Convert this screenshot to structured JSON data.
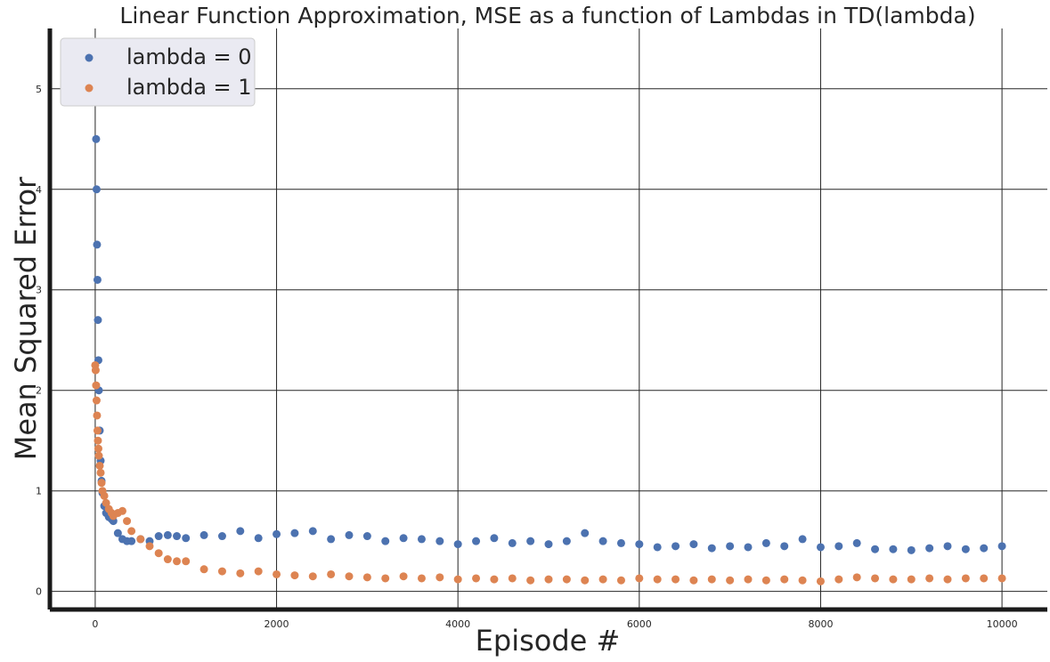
{
  "chart_data": {
    "type": "scatter",
    "title": "Linear Function Approximation, MSE as a function of Lambdas in TD(lambda)",
    "xlabel": "Episode #",
    "ylabel": "Mean Squared Error",
    "xlim": [
      -500,
      10500
    ],
    "ylim": [
      -0.18,
      5.6
    ],
    "xticks": [
      0,
      2000,
      4000,
      6000,
      8000,
      10000
    ],
    "yticks": [
      0,
      1,
      2,
      3,
      4,
      5
    ],
    "grid": true,
    "legend_position": "upper-left",
    "series": [
      {
        "name": "lambda = 0",
        "color": "#4c72b0",
        "x": [
          0,
          5,
          10,
          15,
          20,
          25,
          30,
          35,
          40,
          50,
          60,
          70,
          80,
          100,
          120,
          150,
          180,
          200,
          250,
          300,
          350,
          400,
          500,
          600,
          700,
          800,
          900,
          1000,
          1200,
          1400,
          1600,
          1800,
          2000,
          2200,
          2400,
          2600,
          2800,
          3000,
          3200,
          3400,
          3600,
          3800,
          4000,
          4200,
          4400,
          4600,
          4800,
          5000,
          5200,
          5400,
          5600,
          5800,
          6000,
          6200,
          6400,
          6600,
          6800,
          7000,
          7200,
          7400,
          7600,
          7800,
          8000,
          8200,
          8400,
          8600,
          8800,
          9000,
          9200,
          9400,
          9600,
          9800,
          10000
        ],
        "y": [
          5.35,
          5.05,
          4.5,
          4.0,
          3.45,
          3.1,
          2.7,
          2.3,
          2.0,
          1.6,
          1.3,
          1.1,
          0.98,
          0.85,
          0.78,
          0.74,
          0.72,
          0.7,
          0.58,
          0.52,
          0.5,
          0.5,
          0.52,
          0.5,
          0.55,
          0.56,
          0.55,
          0.53,
          0.56,
          0.55,
          0.6,
          0.53,
          0.57,
          0.58,
          0.6,
          0.52,
          0.56,
          0.55,
          0.5,
          0.53,
          0.52,
          0.5,
          0.47,
          0.5,
          0.53,
          0.48,
          0.5,
          0.47,
          0.5,
          0.58,
          0.5,
          0.48,
          0.47,
          0.44,
          0.45,
          0.47,
          0.43,
          0.45,
          0.44,
          0.48,
          0.45,
          0.52,
          0.44,
          0.45,
          0.48,
          0.42,
          0.42,
          0.41,
          0.43,
          0.45,
          0.42,
          0.43,
          0.45
        ]
      },
      {
        "name": "lambda = 1",
        "color": "#dd8452",
        "x": [
          0,
          5,
          10,
          15,
          20,
          25,
          30,
          35,
          40,
          50,
          60,
          70,
          80,
          100,
          120,
          150,
          180,
          200,
          250,
          300,
          350,
          400,
          500,
          600,
          700,
          800,
          900,
          1000,
          1200,
          1400,
          1600,
          1800,
          2000,
          2200,
          2400,
          2600,
          2800,
          3000,
          3200,
          3400,
          3600,
          3800,
          4000,
          4200,
          4400,
          4600,
          4800,
          5000,
          5200,
          5400,
          5600,
          5800,
          6000,
          6200,
          6400,
          6600,
          6800,
          7000,
          7200,
          7400,
          7600,
          7800,
          8000,
          8200,
          8400,
          8600,
          8800,
          9000,
          9200,
          9400,
          9600,
          9800,
          10000
        ],
        "y": [
          2.25,
          2.2,
          2.05,
          1.9,
          1.75,
          1.6,
          1.5,
          1.42,
          1.35,
          1.25,
          1.18,
          1.08,
          1.0,
          0.95,
          0.88,
          0.82,
          0.78,
          0.75,
          0.78,
          0.8,
          0.7,
          0.6,
          0.52,
          0.45,
          0.38,
          0.32,
          0.3,
          0.3,
          0.22,
          0.2,
          0.18,
          0.2,
          0.17,
          0.16,
          0.15,
          0.17,
          0.15,
          0.14,
          0.13,
          0.15,
          0.13,
          0.14,
          0.12,
          0.13,
          0.12,
          0.13,
          0.11,
          0.12,
          0.12,
          0.11,
          0.12,
          0.11,
          0.13,
          0.12,
          0.12,
          0.11,
          0.12,
          0.11,
          0.12,
          0.11,
          0.12,
          0.11,
          0.1,
          0.12,
          0.14,
          0.13,
          0.12,
          0.12,
          0.13,
          0.12,
          0.13,
          0.13,
          0.13
        ]
      }
    ]
  }
}
